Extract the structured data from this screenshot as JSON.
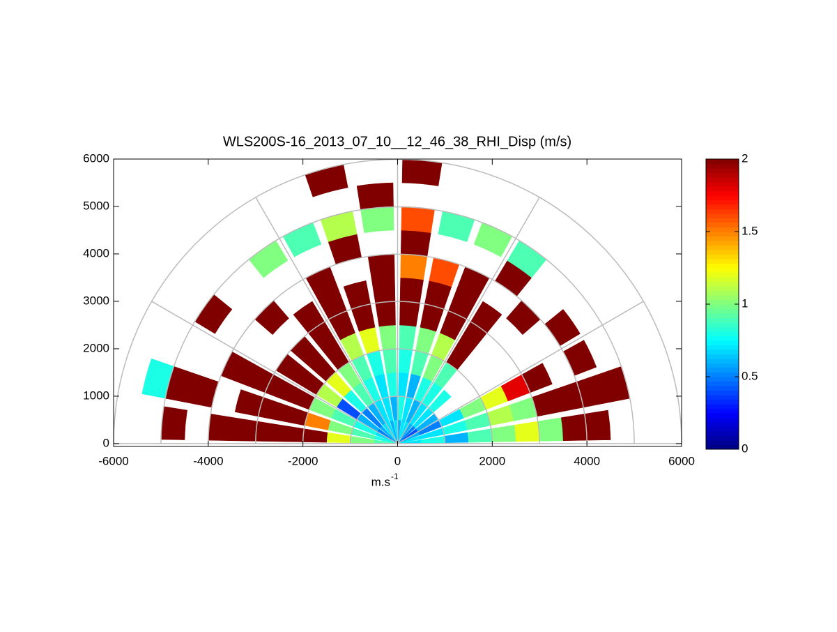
{
  "chart_data": {
    "type": "polar-heatmap",
    "title": "WLS200S-16_2013_07_10__12_46_38_RHI_Disp (m/s)",
    "xlabel": {
      "base": "m.s",
      "sup": "-1"
    },
    "xlim": [
      -6000,
      6000
    ],
    "xticks": [
      -6000,
      -4000,
      -2000,
      0,
      2000,
      4000,
      6000
    ],
    "ylim": [
      -60,
      6000
    ],
    "yticks": [
      0,
      1000,
      2000,
      3000,
      4000,
      5000,
      6000
    ],
    "rings": [
      1000,
      2000,
      3000,
      4000,
      5000,
      6000
    ],
    "spokes": [
      30,
      60,
      90,
      120,
      150
    ],
    "colormap": "jet",
    "clim": [
      0,
      2
    ],
    "cticks": [
      0,
      0.5,
      1,
      1.5,
      2
    ],
    "angles": [
      5,
      15,
      25,
      35,
      45,
      55,
      65,
      75,
      85,
      95,
      105,
      115,
      125,
      135,
      145,
      155,
      165,
      175
    ],
    "range_edges": [
      0,
      500,
      1000,
      1500,
      2000,
      2500,
      3000,
      3500,
      4000,
      4500,
      5000,
      5500,
      6000
    ],
    "values": [
      [
        0.7,
        0.8,
        0.6,
        0.9,
        1.0,
        1.2,
        1.0,
        2,
        2,
        null,
        null,
        null
      ],
      [
        0.7,
        0.7,
        0.8,
        0.9,
        1.1,
        1.0,
        2,
        2,
        2,
        2,
        null,
        null
      ],
      [
        0.6,
        0.5,
        0.7,
        1.0,
        1.2,
        1.8,
        2,
        null,
        2,
        null,
        null,
        null
      ],
      [
        0.4,
        0.6,
        null,
        null,
        null,
        null,
        null,
        null,
        2,
        null,
        null,
        null
      ],
      [
        0.5,
        0.7,
        0.8,
        null,
        null,
        null,
        null,
        2,
        null,
        null,
        null,
        null
      ],
      [
        0.6,
        0.7,
        0.8,
        0.9,
        2,
        2,
        2,
        null,
        2,
        0.9,
        null,
        null
      ],
      [
        0.7,
        0.6,
        0.8,
        1.0,
        1.1,
        2,
        2,
        2,
        null,
        1.0,
        null,
        null
      ],
      [
        0.7,
        0.7,
        0.6,
        0.9,
        1.0,
        2,
        2,
        1.6,
        null,
        0.9,
        null,
        null
      ],
      [
        0.6,
        0.8,
        0.7,
        0.8,
        0.9,
        2,
        2,
        1.5,
        2,
        1.6,
        null,
        2
      ],
      [
        0.7,
        0.6,
        0.8,
        0.9,
        1.0,
        2,
        2,
        2,
        null,
        1.0,
        2,
        null
      ],
      [
        0.6,
        0.7,
        0.7,
        0.8,
        1.2,
        2,
        2,
        null,
        2,
        1.1,
        null,
        2
      ],
      [
        0.7,
        0.7,
        0.8,
        0.9,
        1.1,
        2,
        2,
        2,
        null,
        0.9,
        null,
        null
      ],
      [
        0.7,
        0.6,
        0.9,
        1.0,
        2,
        2,
        2,
        null,
        null,
        1.0,
        null,
        null
      ],
      [
        0.6,
        0.5,
        0.8,
        1.2,
        2,
        2,
        null,
        2,
        null,
        null,
        null,
        null
      ],
      [
        0.5,
        0.6,
        0.4,
        1.1,
        2,
        2,
        null,
        null,
        null,
        2,
        null,
        null
      ],
      [
        0.7,
        0.8,
        0.9,
        1.0,
        2,
        2,
        2,
        2,
        null,
        null,
        null,
        null
      ],
      [
        0.8,
        0.9,
        1.0,
        1.5,
        2,
        2,
        2,
        null,
        2,
        2,
        0.8,
        null
      ],
      [
        0.9,
        1.0,
        1.2,
        2,
        2,
        2,
        2,
        2,
        null,
        2,
        null,
        null
      ]
    ]
  }
}
